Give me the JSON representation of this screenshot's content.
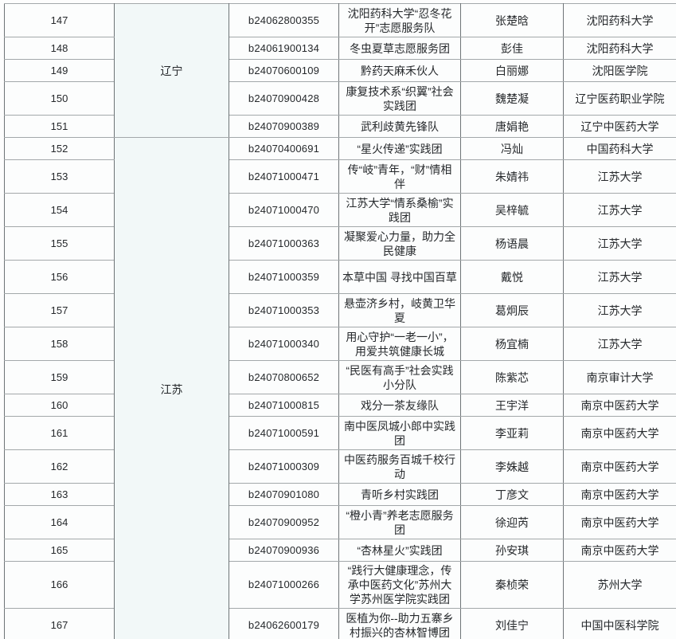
{
  "colors": {
    "page_bg": "#fdfdfd",
    "cell_bg": "#fcfdfd",
    "province_bg": "#f2f8f8",
    "h_line": "#a3a8aa",
    "v_line": "#6e7477",
    "text": "#25282b"
  },
  "groups": [
    {
      "province": "辽宁",
      "rows": [
        {
          "no": "147",
          "code": "b24062800355",
          "team": "沈阳药科大学“忍冬花开”志愿服务队",
          "leader": "张楚晗",
          "school": "沈阳药科大学"
        },
        {
          "no": "148",
          "code": "b24061900134",
          "team": "冬虫夏草志愿服务团",
          "leader": "彭佳",
          "school": "沈阳药科大学"
        },
        {
          "no": "149",
          "code": "b24070600109",
          "team": "黔药天麻禾伙人",
          "leader": "白丽娜",
          "school": "沈阳医学院"
        },
        {
          "no": "150",
          "code": "b24070900428",
          "team": "康复技术系“织翼”社会实践团",
          "leader": "魏楚凝",
          "school": "辽宁医药职业学院"
        },
        {
          "no": "151",
          "code": "b24070900389",
          "team": "武利歧黄先锋队",
          "leader": "唐娟艳",
          "school": "辽宁中医药大学"
        }
      ]
    },
    {
      "province": "江苏",
      "rows": [
        {
          "no": "152",
          "code": "b24070400691",
          "team": "“星火传递”实践团",
          "leader": "冯灿",
          "school": "中国药科大学"
        },
        {
          "no": "153",
          "code": "b24071000471",
          "team": "传“岐”青年，“财”情相伴",
          "leader": "朱婧祎",
          "school": "江苏大学"
        },
        {
          "no": "154",
          "code": "b24071000470",
          "team": "江苏大学“情系桑榆”实践团",
          "leader": "吴梓毓",
          "school": "江苏大学"
        },
        {
          "no": "155",
          "code": "b24071000363",
          "team": "凝聚爱心力量，助力全民健康",
          "leader": "杨语晨",
          "school": "江苏大学"
        },
        {
          "no": "156",
          "code": "b24071000359",
          "team": "本草中国 寻找中国百草",
          "leader": "戴悦",
          "school": "江苏大学"
        },
        {
          "no": "157",
          "code": "b24071000353",
          "team": "悬壶济乡村，岐黄卫华夏",
          "leader": "葛炯辰",
          "school": "江苏大学"
        },
        {
          "no": "158",
          "code": "b24071000340",
          "team": "用心守护“一老一小”，用爱共筑健康长城",
          "leader": "杨宜楠",
          "school": "江苏大学"
        },
        {
          "no": "159",
          "code": "b24070800652",
          "team": "“民医有高手”社会实践小分队",
          "leader": "陈紫芯",
          "school": "南京审计大学"
        },
        {
          "no": "160",
          "code": "b24071000815",
          "team": "戏分一茶友缘队",
          "leader": "王宇洋",
          "school": "南京中医药大学"
        },
        {
          "no": "161",
          "code": "b24071000591",
          "team": "南中医凤城小郎中实践团",
          "leader": "李亚莉",
          "school": "南京中医药大学"
        },
        {
          "no": "162",
          "code": "b24071000309",
          "team": "中医药服务百城千校行动",
          "leader": "李姝越",
          "school": "南京中医药大学"
        },
        {
          "no": "163",
          "code": "b24070901080",
          "team": "青听乡村实践团",
          "leader": "丁彦文",
          "school": "南京中医药大学"
        },
        {
          "no": "164",
          "code": "b24070900952",
          "team": "“橙小青”养老志愿服务团",
          "leader": "徐迎芮",
          "school": "南京中医药大学"
        },
        {
          "no": "165",
          "code": "b24070900936",
          "team": "“杏林星火”实践团",
          "leader": "孙安琪",
          "school": "南京中医药大学"
        },
        {
          "no": "166",
          "code": "b24071000266",
          "team": "“践行大健康理念，传承中医药文化”苏州大学苏州医学院实践团",
          "leader": "秦桢荣",
          "school": "苏州大学"
        },
        {
          "no": "167",
          "code": "b24062600179",
          "team": "医植为你--助力五寨乡村振兴的杏林智博团",
          "leader": "刘佳宁",
          "school": "中国中医科学院"
        }
      ]
    }
  ]
}
